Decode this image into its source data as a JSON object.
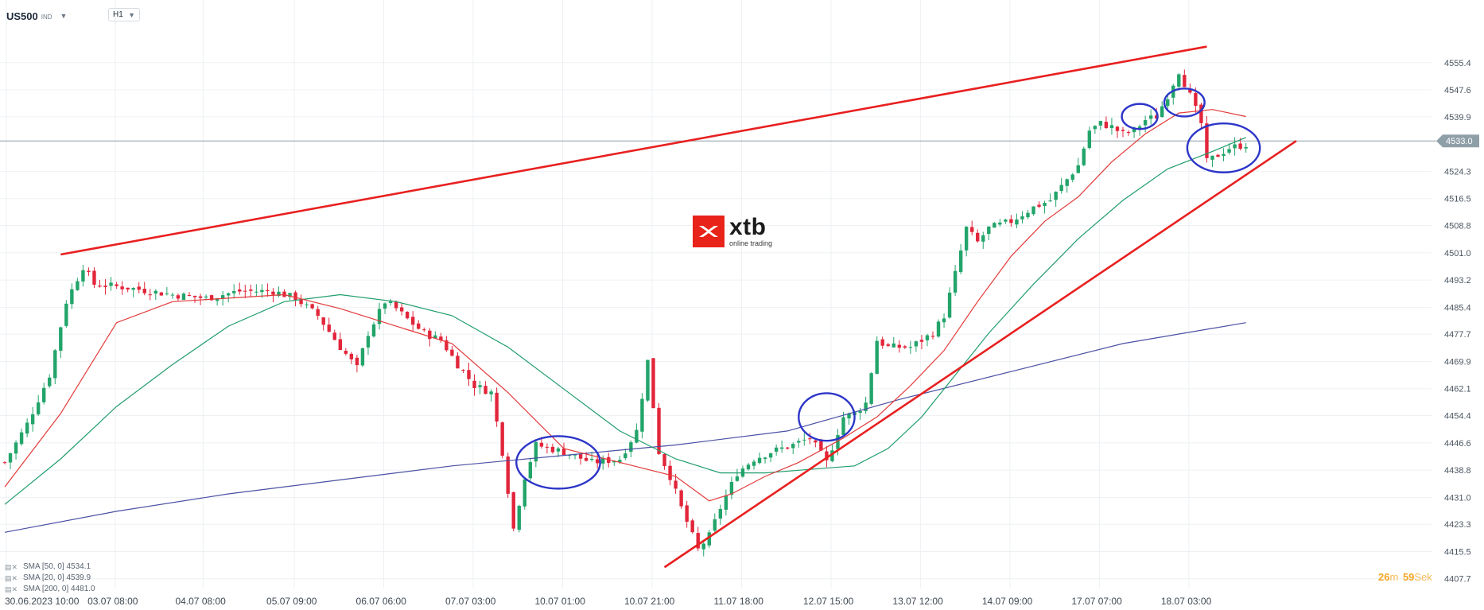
{
  "header": {
    "symbol": "US500",
    "symbol_tag": "IND",
    "timeframe": "H1"
  },
  "logo": {
    "word": "xtb",
    "tagline": "online trading"
  },
  "countdown": {
    "minutes": "26",
    "minutes_unit": "m",
    "seconds": "59",
    "seconds_unit": "Sek"
  },
  "colors": {
    "bull": "#22a46a",
    "bear": "#e2253a",
    "sma20": "#e33a3a",
    "sma50": "#1f9d6b",
    "sma200": "#4a4fa3",
    "trendline": "#e82020",
    "circle": "#2c35c8",
    "price_line": "#8f9fa8",
    "grid": "#eef1f4",
    "current_price_bg": "#8f9fa8"
  },
  "legend": [
    {
      "icons": "eye-icon close-icon",
      "text": "SMA [50, 0]  4534.1"
    },
    {
      "icons": "eye-icon close-icon",
      "text": "SMA [20, 0]  4539.9"
    },
    {
      "icons": "eye-icon close-icon",
      "text": "SMA [200, 0]  4481.0"
    }
  ],
  "chart_data": {
    "type": "candlestick",
    "instrument": "US500",
    "interval": "H1",
    "ylim": [
      4404,
      4564
    ],
    "y_ticks": [
      "4555.4",
      "4547.6",
      "4539.9",
      "4533.0",
      "4524.3",
      "4516.5",
      "4508.8",
      "4501.0",
      "4493.2",
      "4485.4",
      "4477.7",
      "4469.9",
      "4462.1",
      "4454.4",
      "4446.6",
      "4438.8",
      "4431.0",
      "4423.3",
      "4415.5",
      "4407.7"
    ],
    "x_tick_labels": [
      "30.06.2023  10:00",
      "03.07  08:00",
      "04.07  08:00",
      "05.07  09:00",
      "06.07  06:00",
      "07.07  03:00",
      "10.07  01:00",
      "10.07  21:00",
      "11.07  18:00",
      "12.07  15:00",
      "13.07  12:00",
      "14.07  09:00",
      "17.07  07:00",
      "18.07  03:00"
    ],
    "current_price": 4533.0,
    "price_path": [
      [
        0,
        4441
      ],
      [
        4,
        4452
      ],
      [
        8,
        4466
      ],
      [
        11,
        4487
      ],
      [
        14,
        4497
      ],
      [
        16,
        4492
      ],
      [
        22,
        4491
      ],
      [
        30,
        4489
      ],
      [
        36,
        4488
      ],
      [
        42,
        4490
      ],
      [
        48,
        4490
      ],
      [
        52,
        4488
      ],
      [
        56,
        4483
      ],
      [
        60,
        4474
      ],
      [
        63,
        4468
      ],
      [
        65,
        4478
      ],
      [
        68,
        4487
      ],
      [
        70,
        4485
      ],
      [
        72,
        4482
      ],
      [
        75,
        4478
      ],
      [
        78,
        4476
      ],
      [
        81,
        4469
      ],
      [
        84,
        4463
      ],
      [
        87,
        4461
      ],
      [
        89,
        4444
      ],
      [
        91,
        4422
      ],
      [
        93,
        4437
      ],
      [
        95,
        4446
      ],
      [
        100,
        4444
      ],
      [
        105,
        4441
      ],
      [
        110,
        4442
      ],
      [
        113,
        4450
      ],
      [
        115,
        4470
      ],
      [
        117,
        4444
      ],
      [
        119,
        4437
      ],
      [
        121,
        4428
      ],
      [
        124,
        4416
      ],
      [
        126,
        4420
      ],
      [
        128,
        4428
      ],
      [
        131,
        4438
      ],
      [
        134,
        4442
      ],
      [
        137,
        4444
      ],
      [
        141,
        4446
      ],
      [
        144,
        4448
      ],
      [
        147,
        4441
      ],
      [
        150,
        4454
      ],
      [
        152,
        4455
      ],
      [
        154,
        4458
      ],
      [
        156,
        4476
      ],
      [
        158,
        4474
      ],
      [
        162,
        4474
      ],
      [
        164,
        4476
      ],
      [
        166,
        4478
      ],
      [
        168,
        4483
      ],
      [
        170,
        4495
      ],
      [
        172,
        4508
      ],
      [
        174,
        4504
      ],
      [
        176,
        4508
      ],
      [
        180,
        4510
      ],
      [
        184,
        4514
      ],
      [
        187,
        4516
      ],
      [
        190,
        4522
      ],
      [
        192,
        4526
      ],
      [
        194,
        4536
      ],
      [
        196,
        4538
      ],
      [
        198,
        4537
      ],
      [
        200,
        4535
      ],
      [
        202,
        4536
      ],
      [
        204,
        4539
      ],
      [
        206,
        4540
      ],
      [
        208,
        4546
      ],
      [
        210,
        4553
      ],
      [
        212,
        4546
      ],
      [
        214,
        4538
      ],
      [
        215,
        4527
      ],
      [
        217,
        4529
      ],
      [
        219,
        4531
      ],
      [
        222,
        4532
      ]
    ],
    "sma_20": [
      [
        0,
        4434
      ],
      [
        10,
        4455
      ],
      [
        20,
        4481
      ],
      [
        30,
        4487
      ],
      [
        40,
        4488
      ],
      [
        50,
        4489
      ],
      [
        60,
        4485
      ],
      [
        70,
        4480
      ],
      [
        80,
        4475
      ],
      [
        90,
        4461
      ],
      [
        100,
        4445
      ],
      [
        110,
        4441
      ],
      [
        120,
        4437
      ],
      [
        126,
        4430
      ],
      [
        130,
        4432
      ],
      [
        136,
        4437
      ],
      [
        142,
        4441
      ],
      [
        150,
        4448
      ],
      [
        156,
        4454
      ],
      [
        162,
        4463
      ],
      [
        168,
        4473
      ],
      [
        174,
        4487
      ],
      [
        180,
        4500
      ],
      [
        186,
        4510
      ],
      [
        192,
        4517
      ],
      [
        198,
        4527
      ],
      [
        204,
        4535
      ],
      [
        210,
        4541
      ],
      [
        216,
        4542
      ],
      [
        222,
        4540
      ]
    ],
    "sma_50": [
      [
        0,
        4429
      ],
      [
        10,
        4442
      ],
      [
        20,
        4457
      ],
      [
        30,
        4469
      ],
      [
        40,
        4480
      ],
      [
        50,
        4487
      ],
      [
        60,
        4489
      ],
      [
        70,
        4487
      ],
      [
        80,
        4483
      ],
      [
        90,
        4474
      ],
      [
        100,
        4462
      ],
      [
        110,
        4450
      ],
      [
        120,
        4442
      ],
      [
        128,
        4438
      ],
      [
        136,
        4438
      ],
      [
        144,
        4439
      ],
      [
        152,
        4440
      ],
      [
        158,
        4445
      ],
      [
        164,
        4454
      ],
      [
        170,
        4466
      ],
      [
        176,
        4478
      ],
      [
        184,
        4492
      ],
      [
        192,
        4505
      ],
      [
        200,
        4516
      ],
      [
        208,
        4525
      ],
      [
        216,
        4530
      ],
      [
        222,
        4534
      ]
    ],
    "sma_200": [
      [
        0,
        4421
      ],
      [
        20,
        4427
      ],
      [
        40,
        4432
      ],
      [
        60,
        4436
      ],
      [
        80,
        4440
      ],
      [
        100,
        4443
      ],
      [
        120,
        4446
      ],
      [
        140,
        4450
      ],
      [
        160,
        4459
      ],
      [
        180,
        4467
      ],
      [
        200,
        4475
      ],
      [
        222,
        4481
      ]
    ],
    "trendlines": [
      {
        "from": [
          10,
          4500.5
        ],
        "to": [
          215,
          4560
        ]
      },
      {
        "from": [
          118,
          4411
        ],
        "to": [
          231,
          4533
        ]
      }
    ],
    "highlight_circles": [
      {
        "x": 99,
        "y": 4441,
        "rx": 7.5,
        "ry": 7.5
      },
      {
        "x": 147,
        "y": 4454,
        "rx": 5,
        "ry": 6.8
      },
      {
        "x": 203,
        "y": 4540,
        "rx": 3.2,
        "ry": 3.6
      },
      {
        "x": 211,
        "y": 4544,
        "rx": 3.6,
        "ry": 4.0
      },
      {
        "x": 218,
        "y": 4531,
        "rx": 6.5,
        "ry": 7.0
      }
    ]
  }
}
